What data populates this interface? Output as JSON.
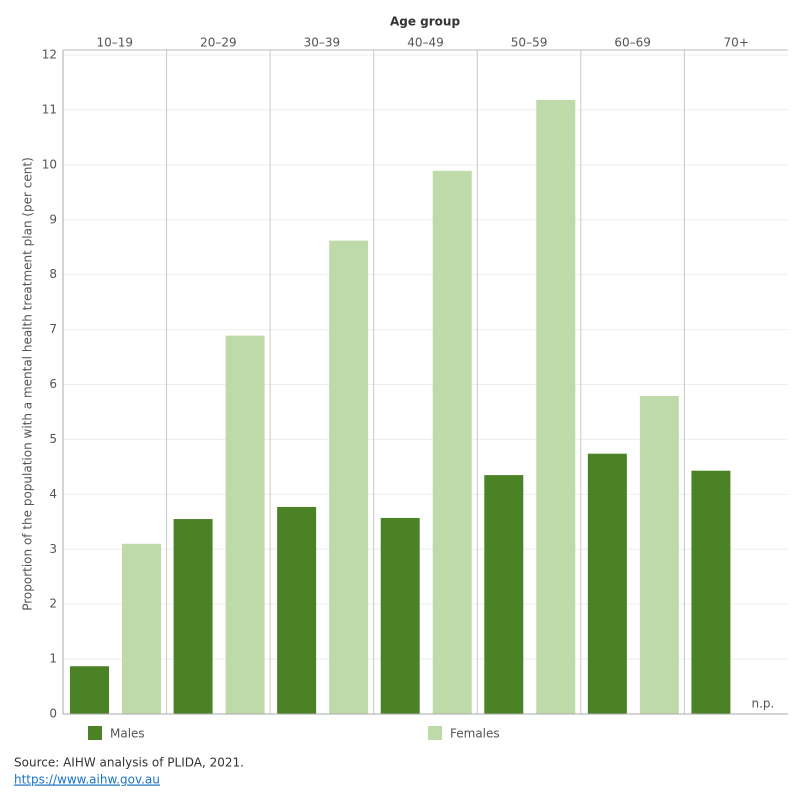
{
  "chart_data": {
    "type": "bar",
    "x_label": "Age group",
    "y_label": "Proportion of the population with a mental health treatment plan (per cent)",
    "categories": [
      "10–19",
      "20–29",
      "30–39",
      "40–49",
      "50–59",
      "60–69",
      "70+"
    ],
    "series": [
      {
        "name": "Males",
        "color": "#4b8226",
        "values": [
          0.87,
          3.55,
          3.77,
          3.57,
          4.35,
          4.74,
          4.43
        ]
      },
      {
        "name": "Females",
        "color": "#bedaa9",
        "values": [
          3.1,
          6.89,
          8.62,
          9.89,
          11.18,
          5.79,
          null
        ],
        "value_labels": [
          null,
          null,
          null,
          null,
          null,
          null,
          "n.p."
        ]
      }
    ],
    "ylim": [
      0,
      12
    ],
    "yticks": [
      0,
      1,
      2,
      3,
      4,
      5,
      6,
      7,
      8,
      9,
      10,
      11,
      12
    ],
    "grid": true,
    "source": "Source: AIHW analysis of PLIDA, 2021.",
    "link": "https://www.aihw.gov.au"
  }
}
